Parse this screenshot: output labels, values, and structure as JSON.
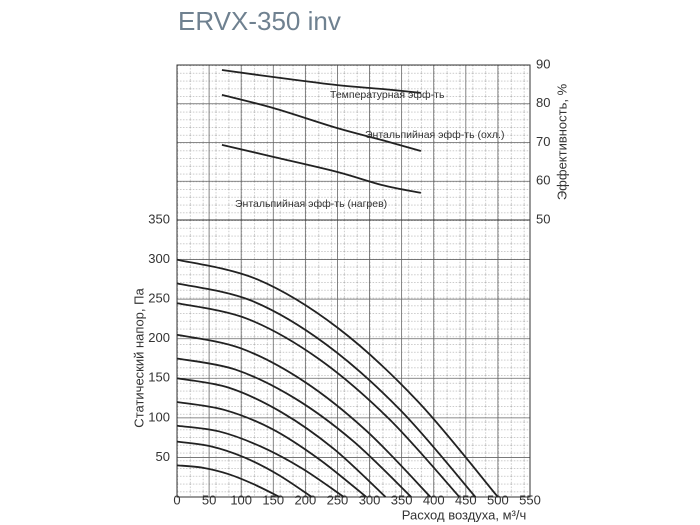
{
  "chart_data": [
    {
      "type": "line",
      "title": "ERVX-350 inv",
      "ylabel": "Эффективность, %",
      "y_axis_side": "right",
      "xlim": [
        0,
        550
      ],
      "ylim": [
        50,
        90
      ],
      "yticks": [
        50,
        60,
        70,
        80,
        90
      ],
      "grid": true,
      "series": [
        {
          "name": "Температурная эфф-ть",
          "color": "#222222",
          "x": [
            70,
            150,
            250,
            320,
            380
          ],
          "values": [
            88.7,
            86.9,
            84.8,
            83.8,
            82.8
          ]
        },
        {
          "name": "Энтальпийная эфф-ть (охл.)",
          "color": "#222222",
          "x": [
            70,
            150,
            250,
            320,
            380
          ],
          "values": [
            82.3,
            78.9,
            73.7,
            70.6,
            67.8
          ]
        },
        {
          "name": "Энтальпийная эфф-ть (нагрев)",
          "color": "#222222",
          "x": [
            70,
            150,
            250,
            320,
            380
          ],
          "values": [
            69.4,
            66.3,
            62.4,
            59,
            57
          ]
        }
      ]
    },
    {
      "type": "line",
      "xlabel": "Расход воздуха, м³/ч",
      "ylabel": "Статический напор, Па",
      "xlim": [
        0,
        550
      ],
      "ylim": [
        0,
        350
      ],
      "xticks": [
        0,
        50,
        100,
        150,
        200,
        250,
        300,
        350,
        400,
        450,
        500,
        550
      ],
      "yticks": [
        50,
        100,
        150,
        200,
        250,
        300,
        350
      ],
      "grid": true,
      "series": [
        {
          "color": "#222222",
          "x": [
            0,
            125,
            250,
            375,
            500
          ],
          "values": [
            300,
            275,
            214,
            121,
            0
          ]
        },
        {
          "color": "#222222",
          "x": [
            0,
            116,
            232,
            349,
            465
          ],
          "values": [
            270,
            248,
            193,
            109,
            0
          ]
        },
        {
          "color": "#222222",
          "x": [
            0,
            110,
            220,
            330,
            440
          ],
          "values": [
            245,
            225,
            175,
            99,
            0
          ]
        },
        {
          "color": "#222222",
          "x": [
            0,
            99,
            198,
            296,
            395
          ],
          "values": [
            205,
            188,
            146,
            83,
            0
          ]
        },
        {
          "color": "#222222",
          "x": [
            0,
            91,
            183,
            274,
            365
          ],
          "values": [
            175,
            161,
            125,
            71,
            0
          ]
        },
        {
          "color": "#222222",
          "x": [
            0,
            81,
            163,
            244,
            325
          ],
          "values": [
            150,
            138,
            107,
            61,
            0
          ]
        },
        {
          "color": "#222222",
          "x": [
            0,
            74,
            148,
            221,
            295
          ],
          "values": [
            120,
            110,
            86,
            48,
            0
          ]
        },
        {
          "color": "#222222",
          "x": [
            0,
            65,
            130,
            195,
            260
          ],
          "values": [
            90,
            83,
            64,
            36,
            0
          ]
        },
        {
          "color": "#222222",
          "x": [
            0,
            53,
            105,
            158,
            210
          ],
          "values": [
            70,
            64,
            50,
            28,
            0
          ]
        },
        {
          "color": "#222222",
          "x": [
            0,
            40,
            80,
            120,
            160
          ],
          "values": [
            40,
            37,
            29,
            16,
            0
          ]
        }
      ]
    }
  ]
}
